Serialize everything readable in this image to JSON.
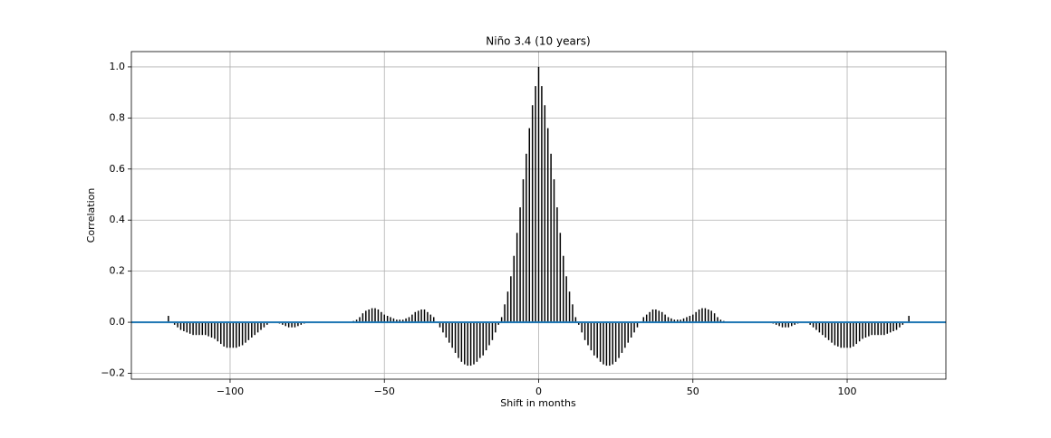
{
  "chart_data": {
    "type": "vlines",
    "title": "Niño 3.4 (10 years)",
    "xlabel": "Shift in months",
    "ylabel": "Correlation",
    "x": [
      -120,
      -119,
      -118,
      -117,
      -116,
      -115,
      -114,
      -113,
      -112,
      -111,
      -110,
      -109,
      -108,
      -107,
      -106,
      -105,
      -104,
      -103,
      -102,
      -101,
      -100,
      -99,
      -98,
      -97,
      -96,
      -95,
      -94,
      -93,
      -92,
      -91,
      -90,
      -89,
      -88,
      -87,
      -86,
      -85,
      -84,
      -83,
      -82,
      -81,
      -80,
      -79,
      -78,
      -77,
      -76,
      -75,
      -74,
      -73,
      -72,
      -71,
      -70,
      -69,
      -68,
      -67,
      -66,
      -65,
      -64,
      -63,
      -62,
      -61,
      -60,
      -59,
      -58,
      -57,
      -56,
      -55,
      -54,
      -53,
      -52,
      -51,
      -50,
      -49,
      -48,
      -47,
      -46,
      -45,
      -44,
      -43,
      -42,
      -41,
      -40,
      -39,
      -38,
      -37,
      -36,
      -35,
      -34,
      -33,
      -32,
      -31,
      -30,
      -29,
      -28,
      -27,
      -26,
      -25,
      -24,
      -23,
      -22,
      -21,
      -20,
      -19,
      -18,
      -17,
      -16,
      -15,
      -14,
      -13,
      -12,
      -11,
      -10,
      -9,
      -8,
      -7,
      -6,
      -5,
      -4,
      -3,
      -2,
      -1,
      0,
      1,
      2,
      3,
      4,
      5,
      6,
      7,
      8,
      9,
      10,
      11,
      12,
      13,
      14,
      15,
      16,
      17,
      18,
      19,
      20,
      21,
      22,
      23,
      24,
      25,
      26,
      27,
      28,
      29,
      30,
      31,
      32,
      33,
      34,
      35,
      36,
      37,
      38,
      39,
      40,
      41,
      42,
      43,
      44,
      45,
      46,
      47,
      48,
      49,
      50,
      51,
      52,
      53,
      54,
      55,
      56,
      57,
      58,
      59,
      60,
      61,
      62,
      63,
      64,
      65,
      66,
      67,
      68,
      69,
      70,
      71,
      72,
      73,
      74,
      75,
      76,
      77,
      78,
      79,
      80,
      81,
      82,
      83,
      84,
      85,
      86,
      87,
      88,
      89,
      90,
      91,
      92,
      93,
      94,
      95,
      96,
      97,
      98,
      99,
      100,
      101,
      102,
      103,
      104,
      105,
      106,
      107,
      108,
      109,
      110,
      111,
      112,
      113,
      114,
      115,
      116,
      117,
      118,
      119,
      120
    ],
    "values": [
      0.025,
      0,
      -0.01,
      -0.02,
      -0.03,
      -0.035,
      -0.04,
      -0.045,
      -0.05,
      -0.05,
      -0.05,
      -0.05,
      -0.05,
      -0.055,
      -0.06,
      -0.065,
      -0.075,
      -0.085,
      -0.095,
      -0.1,
      -0.1,
      -0.1,
      -0.1,
      -0.095,
      -0.09,
      -0.08,
      -0.07,
      -0.06,
      -0.05,
      -0.04,
      -0.03,
      -0.02,
      -0.01,
      0,
      0,
      0,
      -0.005,
      -0.01,
      -0.015,
      -0.02,
      -0.02,
      -0.02,
      -0.015,
      -0.01,
      -0.005,
      0,
      0,
      0,
      0,
      0,
      0,
      0,
      0,
      0,
      0,
      0,
      0,
      0,
      0,
      0,
      0.005,
      0.01,
      0.02,
      0.035,
      0.045,
      0.05,
      0.055,
      0.055,
      0.05,
      0.04,
      0.03,
      0.025,
      0.02,
      0.015,
      0.01,
      0.01,
      0.01,
      0.015,
      0.02,
      0.03,
      0.04,
      0.045,
      0.05,
      0.05,
      0.04,
      0.03,
      0.02,
      0,
      -0.02,
      -0.04,
      -0.06,
      -0.08,
      -0.1,
      -0.12,
      -0.14,
      -0.155,
      -0.165,
      -0.17,
      -0.17,
      -0.165,
      -0.155,
      -0.14,
      -0.13,
      -0.11,
      -0.09,
      -0.07,
      -0.04,
      -0.01,
      0.02,
      0.07,
      0.12,
      0.18,
      0.26,
      0.35,
      0.45,
      0.56,
      0.66,
      0.76,
      0.85,
      0.925,
      1.0,
      0.925,
      0.85,
      0.76,
      0.66,
      0.56,
      0.45,
      0.35,
      0.26,
      0.18,
      0.12,
      0.07,
      0.02,
      -0.01,
      -0.04,
      -0.07,
      -0.09,
      -0.11,
      -0.13,
      -0.14,
      -0.155,
      -0.165,
      -0.17,
      -0.17,
      -0.165,
      -0.155,
      -0.14,
      -0.12,
      -0.1,
      -0.08,
      -0.06,
      -0.04,
      -0.02,
      0,
      0.02,
      0.03,
      0.04,
      0.05,
      0.05,
      0.045,
      0.04,
      0.03,
      0.02,
      0.015,
      0.01,
      0.01,
      0.01,
      0.015,
      0.02,
      0.025,
      0.03,
      0.04,
      0.05,
      0.055,
      0.055,
      0.05,
      0.045,
      0.035,
      0.02,
      0.01,
      0.005,
      0,
      0,
      0,
      0,
      0,
      0,
      0,
      0,
      0,
      0,
      0,
      0,
      0,
      0,
      0,
      -0.005,
      -0.01,
      -0.015,
      -0.02,
      -0.02,
      -0.02,
      -0.015,
      -0.01,
      -0.005,
      0,
      0,
      0,
      -0.01,
      -0.02,
      -0.03,
      -0.04,
      -0.05,
      -0.06,
      -0.07,
      -0.08,
      -0.09,
      -0.095,
      -0.1,
      -0.1,
      -0.1,
      -0.1,
      -0.095,
      -0.085,
      -0.075,
      -0.065,
      -0.06,
      -0.055,
      -0.05,
      -0.05,
      -0.05,
      -0.05,
      -0.05,
      -0.045,
      -0.04,
      -0.035,
      -0.03,
      -0.02,
      -0.01,
      0,
      0.025
    ],
    "color": "black",
    "baseline_color": "#1f77b4",
    "xlim": [
      -132,
      132
    ],
    "ylim": [
      -0.223,
      1.06
    ],
    "xticks": [
      {
        "value": -100,
        "label": "−100"
      },
      {
        "value": -50,
        "label": "−50"
      },
      0,
      50,
      100
    ],
    "yticks": [
      {
        "value": -0.2,
        "label": "−0.2"
      },
      {
        "value": 0,
        "label": "0.0"
      },
      0.2,
      0.4,
      0.6,
      0.8,
      {
        "value": 1,
        "label": "1.0"
      }
    ],
    "grid": true
  }
}
